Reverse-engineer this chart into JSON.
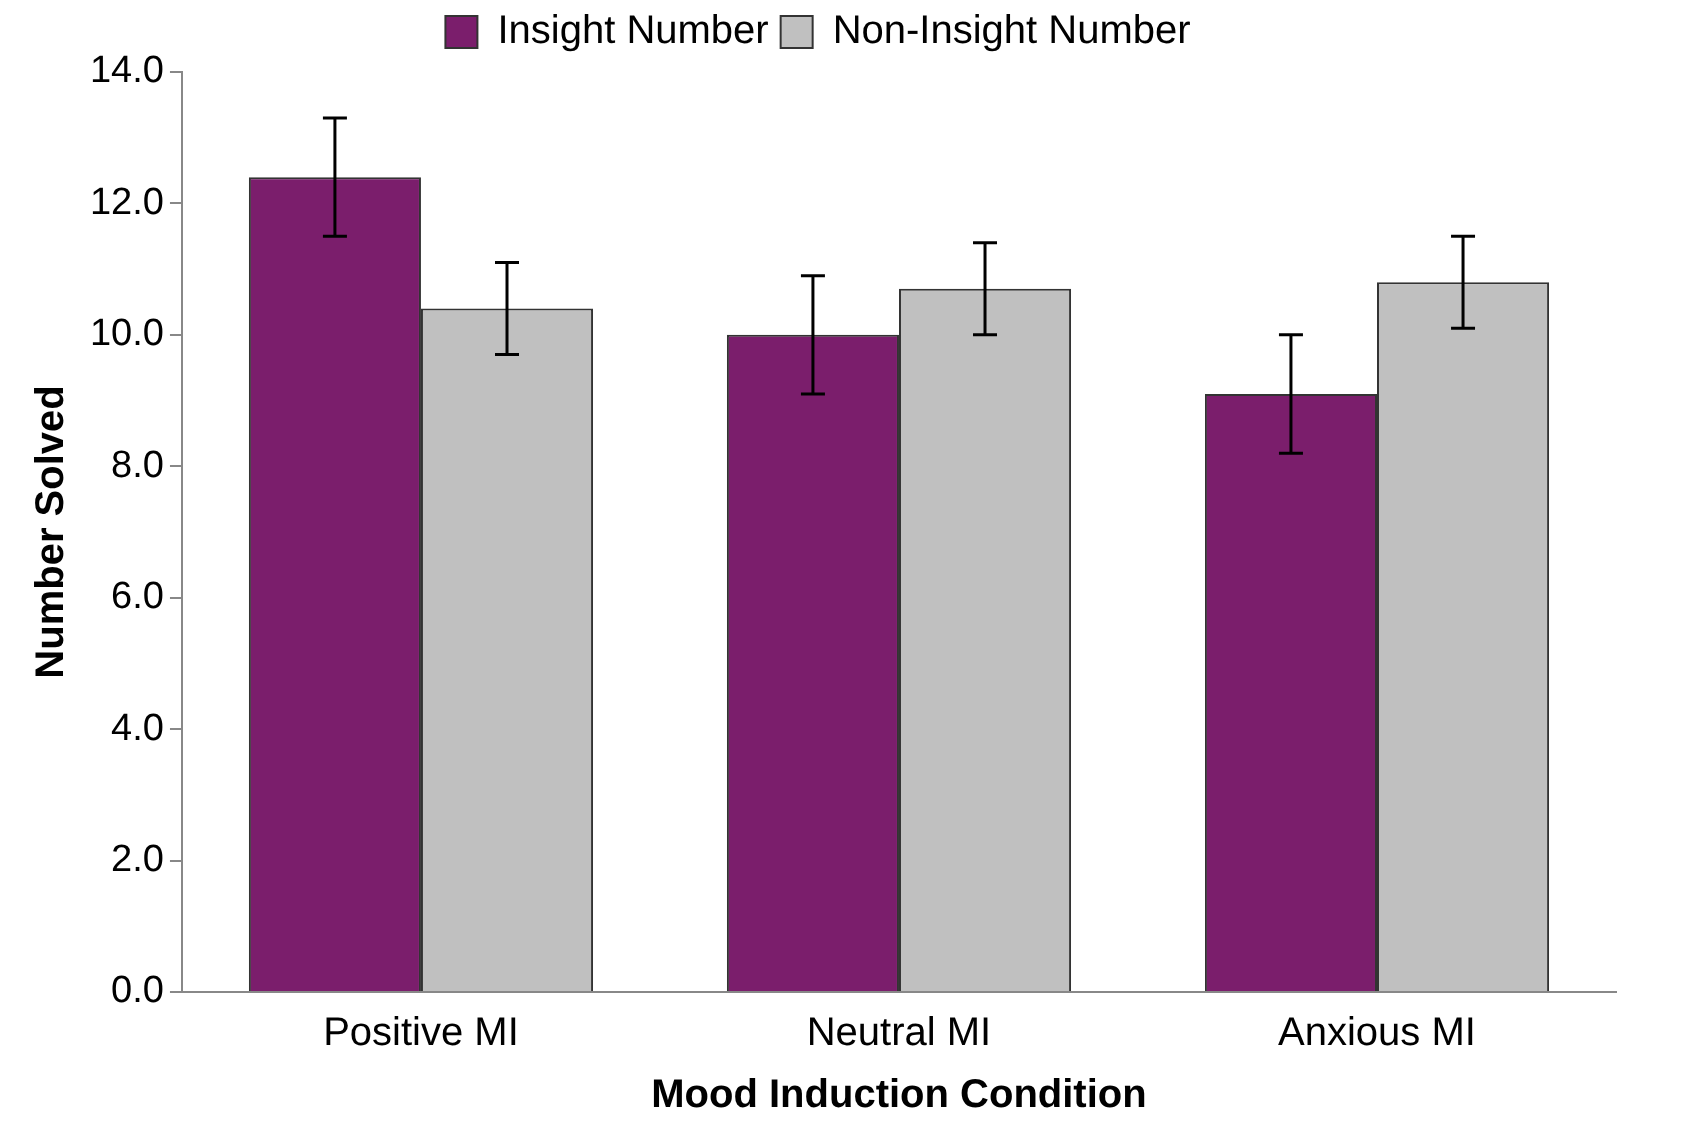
{
  "chart_data": {
    "type": "bar",
    "xlabel": "Mood Induction Condition",
    "ylabel": "Number Solved",
    "categories": [
      "Positive MI",
      "Neutral MI",
      "Anxious MI"
    ],
    "series": [
      {
        "name": "Insight Number",
        "color": "#7b1e6c",
        "values": [
          12.4,
          10.0,
          9.1
        ],
        "errors": [
          0.9,
          0.9,
          0.9
        ]
      },
      {
        "name": "Non-Insight Number",
        "color": "#c0c0c0",
        "values": [
          10.4,
          10.7,
          10.8
        ],
        "errors": [
          0.7,
          0.7,
          0.7
        ]
      }
    ],
    "ylim": [
      0,
      14
    ],
    "yticks": [
      {
        "value": 0,
        "label": "0.0"
      },
      {
        "value": 2,
        "label": "2.0"
      },
      {
        "value": 4,
        "label": "4.0"
      },
      {
        "value": 6,
        "label": "6.0"
      },
      {
        "value": 8,
        "label": "8.0"
      },
      {
        "value": 10,
        "label": "10.0"
      },
      {
        "value": 12,
        "label": "12.0"
      },
      {
        "value": 14,
        "label": "14.0"
      }
    ],
    "grid": false,
    "legend": "top"
  }
}
